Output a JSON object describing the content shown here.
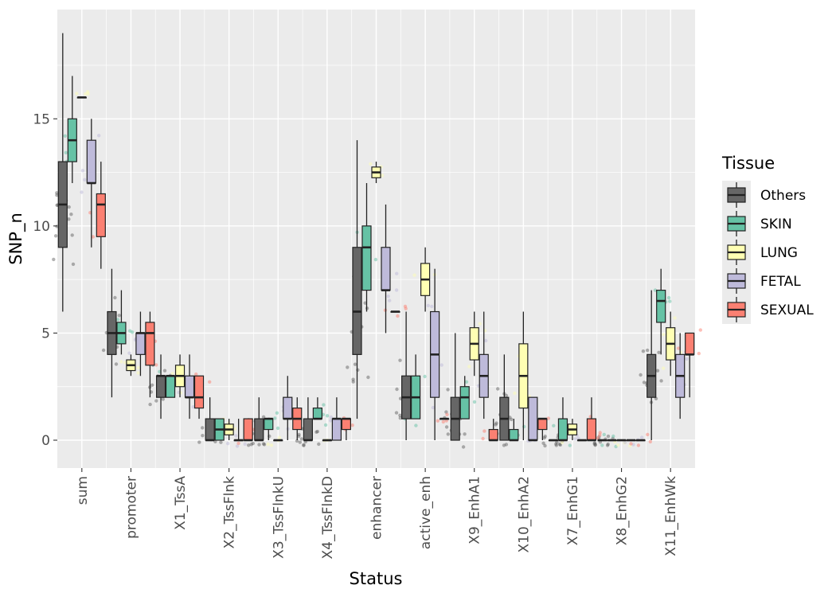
{
  "chart_data": {
    "type": "boxplot",
    "xlabel": "Status",
    "ylabel": "SNP_n",
    "ylim": [
      -1.3,
      20.1
    ],
    "yticks": [
      0,
      5,
      10,
      15
    ],
    "grid": true,
    "legend_placement": "right",
    "legend_title": "Tissue",
    "categories": [
      "sum",
      "promoter",
      "X1_TssA",
      "X2_TssFlnk",
      "X3_TssFlnkU",
      "X4_TssFlnkD",
      "enhancer",
      "active_enh",
      "X9_EnhA1",
      "X10_EnhA2",
      "X7_EnhG1",
      "X8_EnhG2",
      "X11_EnhWk"
    ],
    "series": [
      {
        "name": "Others",
        "color": "#666666",
        "boxes": [
          [
            6,
            9,
            11,
            13,
            19
          ],
          [
            2,
            4,
            5,
            6,
            8
          ],
          [
            1,
            2,
            3,
            3,
            4
          ],
          [
            0,
            0,
            0,
            1,
            2
          ],
          [
            0,
            0,
            0,
            1,
            2
          ],
          [
            0,
            0,
            0,
            1,
            2
          ],
          [
            1,
            4,
            6,
            9,
            14
          ],
          [
            0,
            1,
            2,
            3,
            6
          ],
          [
            0,
            0,
            1,
            2,
            5
          ],
          [
            0,
            0,
            1,
            2,
            4
          ],
          [
            0,
            0,
            0,
            0,
            0
          ],
          [
            0,
            0,
            0,
            0,
            0
          ],
          [
            0,
            2,
            3,
            4,
            7
          ]
        ]
      },
      {
        "name": "SKIN",
        "color": "#66C2A5",
        "boxes": [
          [
            12,
            13,
            14,
            15,
            17
          ],
          [
            4,
            4.5,
            5,
            5.5,
            7
          ],
          [
            2,
            2,
            3,
            3,
            3
          ],
          [
            0,
            0,
            0.5,
            1,
            1
          ],
          [
            0,
            0.5,
            1,
            1,
            1
          ],
          [
            1,
            1,
            1,
            1.5,
            2
          ],
          [
            6,
            7,
            9,
            10,
            12
          ],
          [
            1,
            1,
            2,
            3,
            4
          ],
          [
            1,
            1,
            2,
            2.5,
            3
          ],
          [
            0,
            0,
            0,
            0.5,
            1
          ],
          [
            0,
            0,
            0,
            1,
            2
          ],
          [
            0,
            0,
            0,
            0,
            0
          ],
          [
            4,
            5.5,
            6.5,
            7,
            8
          ]
        ]
      },
      {
        "name": "LUNG",
        "color": "#FFFFB3",
        "boxes": [
          [
            16,
            16,
            16,
            16,
            16
          ],
          [
            3,
            3.25,
            3.5,
            3.75,
            4
          ],
          [
            2,
            2.5,
            3,
            3.5,
            4
          ],
          [
            0,
            0.25,
            0.5,
            0.75,
            1
          ],
          [
            0,
            0,
            0,
            0,
            0
          ],
          [
            0,
            0,
            0,
            0,
            0
          ],
          [
            12,
            12.25,
            12.5,
            12.75,
            13
          ],
          [
            6,
            6.75,
            7.5,
            8.25,
            9
          ],
          [
            3,
            3.75,
            4.5,
            5.25,
            6
          ],
          [
            0,
            1.5,
            3,
            4.5,
            6
          ],
          [
            0,
            0.25,
            0.5,
            0.75,
            1
          ],
          [
            0,
            0,
            0,
            0,
            0
          ],
          [
            3,
            3.75,
            4.5,
            5.25,
            6
          ]
        ]
      },
      {
        "name": "FETAL",
        "color": "#BEBADA",
        "boxes": [
          [
            9,
            12,
            12,
            14,
            15
          ],
          [
            3,
            4,
            5,
            5,
            6
          ],
          [
            1,
            2,
            2,
            3,
            4
          ],
          [
            0,
            0,
            0,
            0,
            1
          ],
          [
            0,
            1,
            1,
            2,
            3
          ],
          [
            0,
            0,
            1,
            1,
            2
          ],
          [
            5,
            7,
            7,
            9,
            11
          ],
          [
            0,
            2,
            4,
            6,
            8
          ],
          [
            1,
            2,
            3,
            4,
            6
          ],
          [
            0,
            0,
            0,
            2,
            2
          ],
          [
            0,
            0,
            0,
            0,
            0
          ],
          [
            0,
            0,
            0,
            0,
            0
          ],
          [
            1,
            2,
            3,
            4,
            5
          ]
        ]
      },
      {
        "name": "SEXUAL",
        "color": "#FB8072",
        "boxes": [
          [
            8,
            9.5,
            11,
            11.5,
            13
          ],
          [
            2,
            3.5,
            5,
            5.5,
            6
          ],
          [
            1,
            1.5,
            2,
            3,
            3
          ],
          [
            0,
            0,
            0,
            1,
            1
          ],
          [
            0,
            0.5,
            1,
            1.5,
            2
          ],
          [
            0,
            0.5,
            1,
            1,
            1
          ],
          [
            6,
            6,
            6,
            6,
            6
          ],
          [
            1,
            1,
            1,
            1,
            1
          ],
          [
            0,
            0,
            0,
            0.5,
            1
          ],
          [
            0,
            0.5,
            1,
            1,
            1
          ],
          [
            0,
            0,
            0,
            1,
            2
          ],
          [
            0,
            0,
            0,
            0,
            0
          ],
          [
            2,
            4,
            4,
            5,
            5
          ]
        ]
      }
    ]
  }
}
